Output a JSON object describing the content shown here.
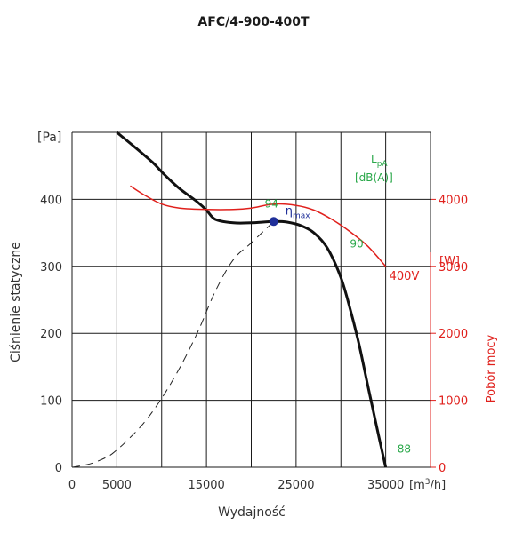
{
  "chart_data": {
    "type": "line",
    "title": "AFC/4-900-400T",
    "xlabel": "Wydajność",
    "xunit": "[m",
    "xunit_sup": "3",
    "xunit_end": "/h]",
    "ylabel": "Ciśnienie statyczne",
    "yunit": "[Pa]",
    "y2label": "Pobór mocy",
    "y2unit": "[W]",
    "xlim": [
      0,
      40000
    ],
    "ylim": [
      0,
      500
    ],
    "y2lim": [
      0,
      5000
    ],
    "grid": true,
    "x_ticks": [
      "0",
      "5000",
      "15000",
      "25000",
      "35000"
    ],
    "x_tick_values": [
      0,
      5000,
      15000,
      25000,
      35000
    ],
    "y_ticks": [
      "0",
      "100",
      "200",
      "300",
      "400"
    ],
    "y_tick_values": [
      0,
      100,
      200,
      300,
      400
    ],
    "y2_ticks": [
      "0",
      "1000",
      "2000",
      "3000",
      "4000"
    ],
    "y2_tick_values": [
      0,
      1000,
      2000,
      3000,
      4000
    ],
    "colors": {
      "pressure": "#111111",
      "power": "#e0201c",
      "noise": "#2aa84a",
      "efficiency": "#1f2f99",
      "system": "#222222"
    },
    "series": [
      {
        "key": "pressure",
        "axis": "left",
        "style": "solid",
        "x": [
          5000,
          7000,
          9000,
          10000,
          11000,
          12000,
          13000,
          14000,
          15000,
          16000,
          18000,
          20000,
          22500,
          24000,
          25500,
          27000,
          28500,
          30000,
          31000,
          32000,
          33000,
          34000,
          35000
        ],
        "y": [
          500,
          478,
          455,
          441,
          428,
          416,
          406,
          396,
          384,
          370,
          365,
          365,
          367,
          366,
          361,
          350,
          327,
          283,
          238,
          185,
          122,
          60,
          0
        ]
      },
      {
        "name": "400V",
        "key": "power",
        "axis": "right",
        "style": "solid",
        "x": [
          6500,
          8000,
          10000,
          12000,
          15000,
          18000,
          20000,
          22500,
          25000,
          27000,
          29000,
          31000,
          33000,
          35000
        ],
        "y": [
          4200,
          4070,
          3930,
          3870,
          3850,
          3850,
          3870,
          3930,
          3910,
          3840,
          3700,
          3520,
          3300,
          3000
        ]
      },
      {
        "key": "system",
        "axis": "left",
        "style": "dashed",
        "x": [
          0,
          2000,
          4000,
          5000,
          6000,
          8000,
          10000,
          12000,
          14000,
          16000,
          18000,
          20000,
          22500
        ],
        "y": [
          0,
          5,
          16,
          26,
          38,
          66,
          103,
          148,
          201,
          263,
          310,
          335,
          367
        ]
      }
    ],
    "noise_labels": [
      {
        "text": "94",
        "x": 21500,
        "y": 388
      },
      {
        "text": "90",
        "x": 31000,
        "y": 328
      },
      {
        "text": "88",
        "x": 36300,
        "y": 22
      }
    ],
    "noise_unit_lines": [
      "L",
      "pA",
      "[dB(A)]"
    ],
    "efficiency_point": {
      "x": 22500,
      "y": 367,
      "label": "η",
      "label_sub": "max"
    },
    "power_label": {
      "text": "400V",
      "x": 35400,
      "y": 2800
    }
  }
}
